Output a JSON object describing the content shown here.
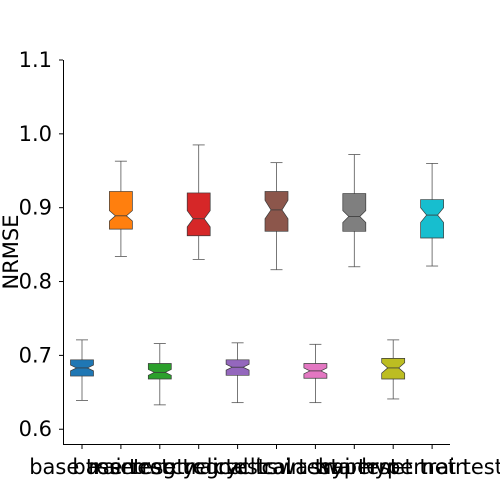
{
  "chart_data": {
    "type": "box",
    "title": "",
    "xlabel": "",
    "ylabel": "NRMSE",
    "ylim": [
      0.58,
      1.1
    ],
    "yticks": [
      0.6,
      0.7,
      0.8,
      0.9,
      1.0,
      1.1
    ],
    "ytick_labels": [
      "0.6",
      "0.7",
      "0.8",
      "0.9",
      "1.0",
      "1.1"
    ],
    "grid": false,
    "notched": true,
    "categories": [
      "base train",
      "base test",
      "resetreg train",
      "resetreg test",
      "cyclical train",
      "cyclical test",
      "swa train",
      "swa test",
      "hypernet train",
      "hypernet test"
    ],
    "series": [
      {
        "category": "base train",
        "color": "#1f77b4",
        "min": 0.639,
        "q1": 0.672,
        "notch_low": 0.679,
        "median": 0.683,
        "notch_high": 0.687,
        "q3": 0.694,
        "max": 0.721
      },
      {
        "category": "base test",
        "color": "#ff7f0e",
        "min": 0.834,
        "q1": 0.871,
        "notch_low": 0.882,
        "median": 0.889,
        "notch_high": 0.896,
        "q3": 0.922,
        "max": 0.963
      },
      {
        "category": "resetreg train",
        "color": "#2ca02c",
        "min": 0.633,
        "q1": 0.668,
        "notch_low": 0.673,
        "median": 0.677,
        "notch_high": 0.681,
        "q3": 0.689,
        "max": 0.716
      },
      {
        "category": "resetreg test",
        "color": "#d62728",
        "min": 0.83,
        "q1": 0.862,
        "notch_low": 0.874,
        "median": 0.885,
        "notch_high": 0.896,
        "q3": 0.92,
        "max": 0.985
      },
      {
        "category": "cyclical train",
        "color": "#9467bd",
        "min": 0.636,
        "q1": 0.673,
        "notch_low": 0.68,
        "median": 0.684,
        "notch_high": 0.688,
        "q3": 0.694,
        "max": 0.717
      },
      {
        "category": "cyclical test",
        "color": "#8c564b",
        "min": 0.816,
        "q1": 0.868,
        "notch_low": 0.885,
        "median": 0.897,
        "notch_high": 0.91,
        "q3": 0.922,
        "max": 0.961
      },
      {
        "category": "swa train",
        "color": "#e377c2",
        "min": 0.636,
        "q1": 0.669,
        "notch_low": 0.675,
        "median": 0.679,
        "notch_high": 0.683,
        "q3": 0.689,
        "max": 0.715
      },
      {
        "category": "swa test",
        "color": "#7f7f7f",
        "min": 0.82,
        "q1": 0.868,
        "notch_low": 0.88,
        "median": 0.888,
        "notch_high": 0.896,
        "q3": 0.919,
        "max": 0.972
      },
      {
        "category": "hypernet train",
        "color": "#bcbd22",
        "min": 0.641,
        "q1": 0.668,
        "notch_low": 0.676,
        "median": 0.683,
        "notch_high": 0.69,
        "q3": 0.696,
        "max": 0.721
      },
      {
        "category": "hypernet test",
        "color": "#17becf",
        "min": 0.821,
        "q1": 0.859,
        "notch_low": 0.88,
        "median": 0.89,
        "notch_high": 0.9,
        "q3": 0.911,
        "max": 0.96
      }
    ]
  }
}
